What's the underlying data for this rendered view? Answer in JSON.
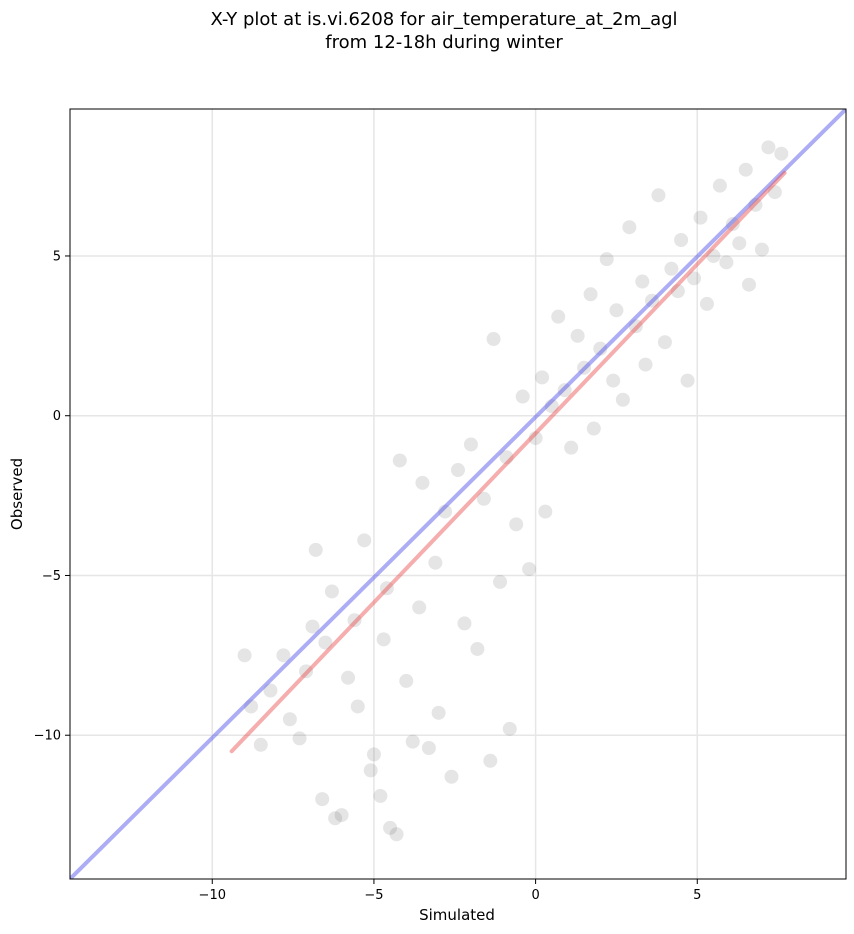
{
  "chart_data": {
    "type": "scatter",
    "title": "X-Y plot at is.vi.6208 for air_temperature_at_2m_agl",
    "subtitle": "from 12-18h during winter",
    "xlabel": "Simulated",
    "ylabel": "Observed",
    "xlim": [
      -14.4,
      9.6
    ],
    "ylim": [
      -14.5,
      9.6
    ],
    "xticks": [
      -10,
      -5,
      0,
      5
    ],
    "yticks": [
      -10,
      -5,
      0,
      5
    ],
    "xtick_labels": [
      "−10",
      "−5",
      "0",
      "5"
    ],
    "ytick_labels": [
      "−10",
      "−5",
      "0",
      "5"
    ],
    "grid": true,
    "point_color": "#333333",
    "one_to_one_color": "#4a4ae8",
    "fit_color": "#e84a4a",
    "one_to_one_line": [
      [
        -14.4,
        -14.5
      ],
      [
        9.6,
        9.6
      ]
    ],
    "fit_line": [
      [
        -9.4,
        -10.5
      ],
      [
        7.7,
        7.6
      ]
    ],
    "points": [
      [
        -9.0,
        -7.5
      ],
      [
        -8.8,
        -9.1
      ],
      [
        -8.5,
        -10.3
      ],
      [
        -8.2,
        -8.6
      ],
      [
        -7.8,
        -7.5
      ],
      [
        -7.6,
        -9.5
      ],
      [
        -7.3,
        -10.1
      ],
      [
        -7.1,
        -8.0
      ],
      [
        -6.9,
        -6.6
      ],
      [
        -6.8,
        -4.2
      ],
      [
        -6.6,
        -12.0
      ],
      [
        -6.5,
        -7.1
      ],
      [
        -6.3,
        -5.5
      ],
      [
        -6.2,
        -12.6
      ],
      [
        -6.0,
        -12.5
      ],
      [
        -5.8,
        -8.2
      ],
      [
        -5.6,
        -6.4
      ],
      [
        -5.5,
        -9.1
      ],
      [
        -5.3,
        -3.9
      ],
      [
        -5.1,
        -11.1
      ],
      [
        -5.0,
        -10.6
      ],
      [
        -4.8,
        -11.9
      ],
      [
        -4.7,
        -7.0
      ],
      [
        -4.6,
        -5.4
      ],
      [
        -4.5,
        -12.9
      ],
      [
        -4.3,
        -13.1
      ],
      [
        -4.2,
        -1.4
      ],
      [
        -4.0,
        -8.3
      ],
      [
        -3.8,
        -10.2
      ],
      [
        -3.6,
        -6.0
      ],
      [
        -3.5,
        -2.1
      ],
      [
        -3.3,
        -10.4
      ],
      [
        -3.1,
        -4.6
      ],
      [
        -3.0,
        -9.3
      ],
      [
        -2.8,
        -3.0
      ],
      [
        -2.6,
        -11.3
      ],
      [
        -2.4,
        -1.7
      ],
      [
        -2.2,
        -6.5
      ],
      [
        -2.0,
        -0.9
      ],
      [
        -1.8,
        -7.3
      ],
      [
        -1.6,
        -2.6
      ],
      [
        -1.4,
        -10.8
      ],
      [
        -1.3,
        2.4
      ],
      [
        -1.1,
        -5.2
      ],
      [
        -0.9,
        -1.3
      ],
      [
        -0.8,
        -9.8
      ],
      [
        -0.6,
        -3.4
      ],
      [
        -0.4,
        0.6
      ],
      [
        -0.2,
        -4.8
      ],
      [
        0.0,
        -0.7
      ],
      [
        0.2,
        1.2
      ],
      [
        0.3,
        -3.0
      ],
      [
        0.5,
        0.3
      ],
      [
        0.7,
        3.1
      ],
      [
        0.9,
        0.8
      ],
      [
        1.1,
        -1.0
      ],
      [
        1.3,
        2.5
      ],
      [
        1.5,
        1.5
      ],
      [
        1.7,
        3.8
      ],
      [
        1.8,
        -0.4
      ],
      [
        2.0,
        2.1
      ],
      [
        2.2,
        4.9
      ],
      [
        2.4,
        1.1
      ],
      [
        2.5,
        3.3
      ],
      [
        2.7,
        0.5
      ],
      [
        2.9,
        5.9
      ],
      [
        3.1,
        2.8
      ],
      [
        3.3,
        4.2
      ],
      [
        3.4,
        1.6
      ],
      [
        3.6,
        3.6
      ],
      [
        3.8,
        6.9
      ],
      [
        4.0,
        2.3
      ],
      [
        4.2,
        4.6
      ],
      [
        4.4,
        3.9
      ],
      [
        4.5,
        5.5
      ],
      [
        4.7,
        1.1
      ],
      [
        4.9,
        4.3
      ],
      [
        5.1,
        6.2
      ],
      [
        5.3,
        3.5
      ],
      [
        5.5,
        5.0
      ],
      [
        5.7,
        7.2
      ],
      [
        5.9,
        4.8
      ],
      [
        6.1,
        6.0
      ],
      [
        6.3,
        5.4
      ],
      [
        6.5,
        7.7
      ],
      [
        6.6,
        4.1
      ],
      [
        6.8,
        6.6
      ],
      [
        7.0,
        5.2
      ],
      [
        7.2,
        8.4
      ],
      [
        7.4,
        7.0
      ],
      [
        7.6,
        8.2
      ]
    ]
  }
}
